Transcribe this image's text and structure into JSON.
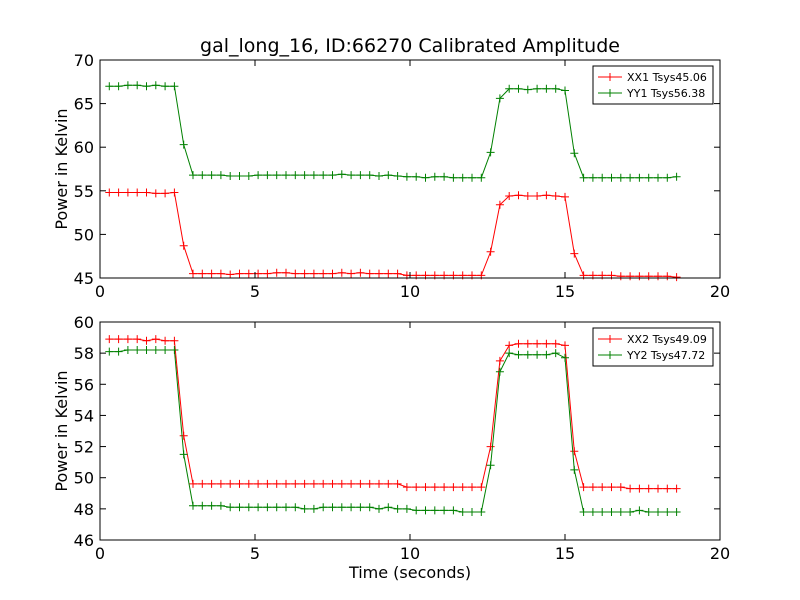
{
  "chart_data": [
    {
      "type": "line",
      "title": "gal_long_16, ID:66270 Calibrated Amplitude",
      "xlabel": "",
      "ylabel": "Power in Kelvin",
      "xlim": [
        0,
        20
      ],
      "ylim": [
        45,
        70
      ],
      "xticks": [
        0,
        5,
        10,
        15,
        20
      ],
      "yticks": [
        45,
        50,
        55,
        60,
        65,
        70
      ],
      "grid": false,
      "legend_position": "top-right",
      "x": [
        0.3,
        0.6,
        0.9,
        1.2,
        1.5,
        1.8,
        2.1,
        2.4,
        2.7,
        3.0,
        3.3,
        3.6,
        3.9,
        4.2,
        4.5,
        4.8,
        5.1,
        5.4,
        5.7,
        6.0,
        6.3,
        6.6,
        6.9,
        7.2,
        7.5,
        7.8,
        8.1,
        8.4,
        8.7,
        9.0,
        9.3,
        9.6,
        9.9,
        10.2,
        10.5,
        10.8,
        11.1,
        11.4,
        11.7,
        12.0,
        12.3,
        12.6,
        12.9,
        13.2,
        13.5,
        13.8,
        14.1,
        14.4,
        14.7,
        15.0,
        15.3,
        15.6,
        15.9,
        16.2,
        16.5,
        16.8,
        17.1,
        17.4,
        17.7,
        18.0,
        18.3,
        18.6
      ],
      "series": [
        {
          "name": "XX1 Tsys45.06",
          "color": "#ff0000",
          "values": [
            54.8,
            54.8,
            54.8,
            54.8,
            54.8,
            54.7,
            54.7,
            54.8,
            48.7,
            45.5,
            45.5,
            45.5,
            45.5,
            45.4,
            45.5,
            45.5,
            45.5,
            45.5,
            45.6,
            45.6,
            45.5,
            45.5,
            45.5,
            45.5,
            45.5,
            45.6,
            45.5,
            45.6,
            45.5,
            45.5,
            45.5,
            45.5,
            45.3,
            45.3,
            45.3,
            45.3,
            45.3,
            45.3,
            45.3,
            45.3,
            45.3,
            48.0,
            53.4,
            54.4,
            54.5,
            54.4,
            54.4,
            54.5,
            54.4,
            54.3,
            47.8,
            45.3,
            45.3,
            45.3,
            45.3,
            45.2,
            45.2,
            45.2,
            45.2,
            45.2,
            45.2,
            45.1
          ]
        },
        {
          "name": "YY1 Tsys56.38",
          "color": "#008000",
          "values": [
            67.0,
            67.0,
            67.1,
            67.1,
            67.0,
            67.1,
            67.0,
            67.0,
            60.3,
            56.8,
            56.8,
            56.8,
            56.8,
            56.7,
            56.7,
            56.7,
            56.8,
            56.8,
            56.8,
            56.8,
            56.8,
            56.8,
            56.8,
            56.8,
            56.8,
            56.9,
            56.8,
            56.8,
            56.8,
            56.7,
            56.8,
            56.7,
            56.6,
            56.6,
            56.5,
            56.6,
            56.6,
            56.5,
            56.5,
            56.5,
            56.5,
            59.4,
            65.6,
            66.7,
            66.7,
            66.6,
            66.7,
            66.7,
            66.7,
            66.5,
            59.3,
            56.5,
            56.5,
            56.5,
            56.5,
            56.5,
            56.5,
            56.5,
            56.5,
            56.5,
            56.5,
            56.6
          ]
        }
      ]
    },
    {
      "type": "line",
      "title": "",
      "xlabel": "Time (seconds)",
      "ylabel": "Power in Kelvin",
      "xlim": [
        0,
        20
      ],
      "ylim": [
        46,
        60
      ],
      "xticks": [
        0,
        5,
        10,
        15,
        20
      ],
      "yticks": [
        46,
        48,
        50,
        52,
        54,
        56,
        58,
        60
      ],
      "grid": false,
      "legend_position": "top-right",
      "x": [
        0.3,
        0.6,
        0.9,
        1.2,
        1.5,
        1.8,
        2.1,
        2.4,
        2.7,
        3.0,
        3.3,
        3.6,
        3.9,
        4.2,
        4.5,
        4.8,
        5.1,
        5.4,
        5.7,
        6.0,
        6.3,
        6.6,
        6.9,
        7.2,
        7.5,
        7.8,
        8.1,
        8.4,
        8.7,
        9.0,
        9.3,
        9.6,
        9.9,
        10.2,
        10.5,
        10.8,
        11.1,
        11.4,
        11.7,
        12.0,
        12.3,
        12.6,
        12.9,
        13.2,
        13.5,
        13.8,
        14.1,
        14.4,
        14.7,
        15.0,
        15.3,
        15.6,
        15.9,
        16.2,
        16.5,
        16.8,
        17.1,
        17.4,
        17.7,
        18.0,
        18.3,
        18.6
      ],
      "series": [
        {
          "name": "XX2 Tsys49.09",
          "color": "#ff0000",
          "values": [
            58.9,
            58.9,
            58.9,
            58.9,
            58.8,
            58.9,
            58.8,
            58.8,
            52.7,
            49.6,
            49.6,
            49.6,
            49.6,
            49.6,
            49.6,
            49.6,
            49.6,
            49.6,
            49.6,
            49.6,
            49.6,
            49.6,
            49.6,
            49.6,
            49.6,
            49.6,
            49.6,
            49.6,
            49.6,
            49.6,
            49.6,
            49.6,
            49.4,
            49.4,
            49.4,
            49.4,
            49.4,
            49.4,
            49.4,
            49.4,
            49.4,
            52.0,
            57.5,
            58.5,
            58.6,
            58.6,
            58.6,
            58.6,
            58.6,
            58.5,
            51.7,
            49.4,
            49.4,
            49.4,
            49.4,
            49.4,
            49.3,
            49.3,
            49.3,
            49.3,
            49.3,
            49.3
          ]
        },
        {
          "name": "YY2 Tsys47.72",
          "color": "#008000",
          "values": [
            58.1,
            58.1,
            58.2,
            58.2,
            58.2,
            58.2,
            58.2,
            58.2,
            51.5,
            48.2,
            48.2,
            48.2,
            48.2,
            48.1,
            48.1,
            48.1,
            48.1,
            48.1,
            48.1,
            48.1,
            48.1,
            48.0,
            48.0,
            48.1,
            48.1,
            48.1,
            48.1,
            48.1,
            48.1,
            48.0,
            48.1,
            48.0,
            48.0,
            47.9,
            47.9,
            47.9,
            47.9,
            47.9,
            47.8,
            47.8,
            47.8,
            50.8,
            56.8,
            58.0,
            57.9,
            57.9,
            57.9,
            57.9,
            58.0,
            57.7,
            50.5,
            47.8,
            47.8,
            47.8,
            47.8,
            47.8,
            47.8,
            47.9,
            47.8,
            47.8,
            47.8,
            47.8
          ]
        }
      ]
    }
  ]
}
